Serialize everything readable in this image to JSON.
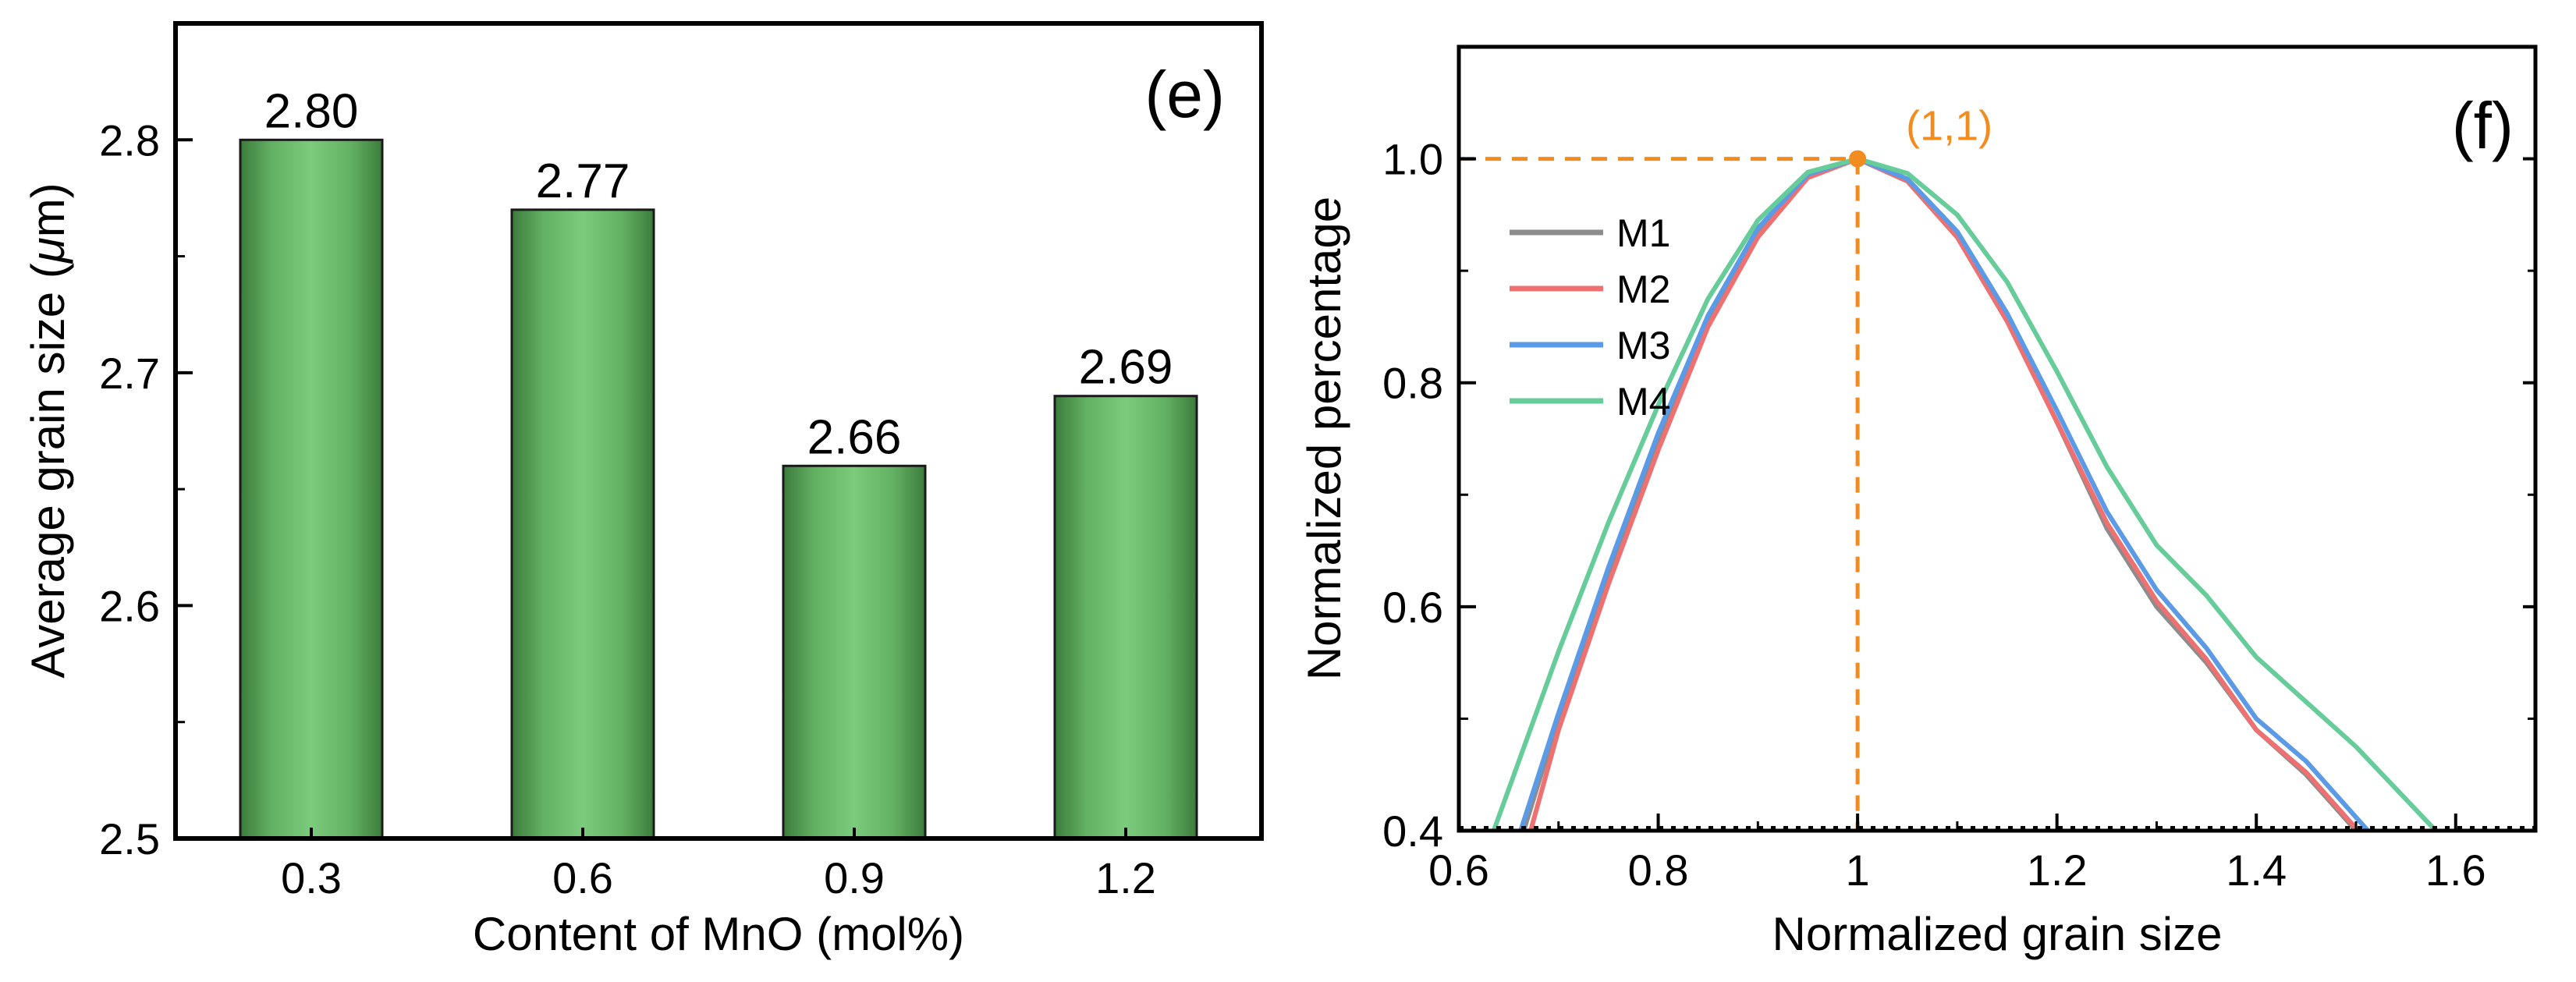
{
  "chart_data": [
    {
      "panel_label": "(e)",
      "type": "bar",
      "xlabel": "Content of MnO (mol%)",
      "ylabel_prefix": "Average grain size (",
      "ylabel_unit": "μ",
      "ylabel_suffix": "m)",
      "categories": [
        "0.3",
        "0.6",
        "0.9",
        "1.2"
      ],
      "values": [
        2.8,
        2.77,
        2.66,
        2.69
      ],
      "value_labels": [
        "2.80",
        "2.77",
        "2.66",
        "2.69"
      ],
      "ylim": [
        2.5,
        2.85
      ],
      "yticks": [
        2.5,
        2.6,
        2.7,
        2.8
      ],
      "ytick_labels": [
        "2.5",
        "2.6",
        "2.7",
        "2.8"
      ],
      "bar_color": "#78c978",
      "bar_edge_color": "#3d7a3d"
    },
    {
      "panel_label": "(f)",
      "type": "line",
      "xlabel": "Normalized grain size",
      "ylabel": "Normalized percentage",
      "xlim": [
        0.6,
        1.68
      ],
      "ylim": [
        0.4,
        1.1
      ],
      "xticks": [
        0.6,
        0.8,
        1.0,
        1.2,
        1.4,
        1.6
      ],
      "xtick_labels": [
        "0.6",
        "0.8",
        "1",
        "1.2",
        "1.4",
        "1.6"
      ],
      "yticks": [
        0.4,
        0.6,
        0.8,
        1.0
      ],
      "ytick_labels": [
        "0.4",
        "0.6",
        "0.8",
        "1.0"
      ],
      "legend_position": "left",
      "series": [
        {
          "name": "M1",
          "color": "#8c8c8c",
          "x": [
            0.665,
            0.7,
            0.75,
            0.8,
            0.85,
            0.9,
            0.95,
            1.0,
            1.05,
            1.1,
            1.15,
            1.2,
            1.25,
            1.3,
            1.35,
            1.4,
            1.45,
            1.5
          ],
          "y": [
            0.4,
            0.5,
            0.63,
            0.75,
            0.855,
            0.935,
            0.985,
            1.0,
            0.98,
            0.93,
            0.855,
            0.765,
            0.67,
            0.6,
            0.55,
            0.49,
            0.45,
            0.4
          ]
        },
        {
          "name": "M2",
          "color": "#ee7070",
          "x": [
            0.672,
            0.7,
            0.75,
            0.8,
            0.85,
            0.9,
            0.95,
            1.0,
            1.05,
            1.1,
            1.15,
            1.2,
            1.25,
            1.3,
            1.35,
            1.4,
            1.45,
            1.502
          ],
          "y": [
            0.4,
            0.49,
            0.62,
            0.74,
            0.85,
            0.93,
            0.983,
            1.0,
            0.98,
            0.93,
            0.855,
            0.765,
            0.675,
            0.605,
            0.553,
            0.49,
            0.452,
            0.4
          ]
        },
        {
          "name": "M3",
          "color": "#5b9ae6",
          "x": [
            0.662,
            0.7,
            0.75,
            0.8,
            0.85,
            0.9,
            0.95,
            1.0,
            1.05,
            1.1,
            1.15,
            1.2,
            1.25,
            1.3,
            1.35,
            1.4,
            1.45,
            1.512
          ],
          "y": [
            0.4,
            0.505,
            0.635,
            0.755,
            0.86,
            0.938,
            0.986,
            1.0,
            0.982,
            0.935,
            0.862,
            0.775,
            0.685,
            0.615,
            0.563,
            0.5,
            0.462,
            0.4
          ]
        },
        {
          "name": "M4",
          "color": "#66cc99",
          "x": [
            0.635,
            0.7,
            0.75,
            0.8,
            0.85,
            0.9,
            0.95,
            1.0,
            1.05,
            1.1,
            1.15,
            1.2,
            1.25,
            1.3,
            1.35,
            1.4,
            1.45,
            1.5,
            1.58
          ],
          "y": [
            0.4,
            0.56,
            0.675,
            0.78,
            0.875,
            0.945,
            0.988,
            1.0,
            0.987,
            0.95,
            0.89,
            0.81,
            0.725,
            0.655,
            0.61,
            0.555,
            0.515,
            0.475,
            0.4
          ]
        }
      ],
      "annotation": {
        "label": "(1,1)",
        "x": 1.0,
        "y": 1.0,
        "color": "#f28c1e"
      }
    }
  ]
}
